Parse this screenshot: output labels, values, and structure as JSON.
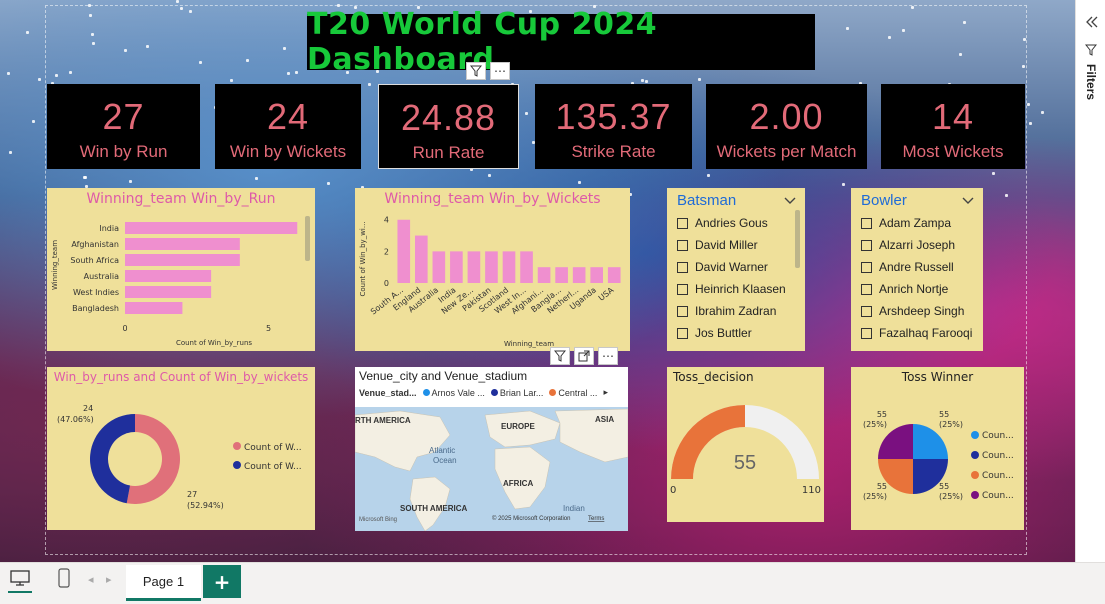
{
  "title": "T20 World Cup 2024 Dashboard",
  "kpis": [
    {
      "value": "27",
      "label": "Win by Run"
    },
    {
      "value": "24",
      "label": "Win by Wickets"
    },
    {
      "value": "24.88",
      "label": "Run Rate"
    },
    {
      "value": "135.37",
      "label": "Strike Rate"
    },
    {
      "value": "2.00",
      "label": "Wickets per Match"
    },
    {
      "value": "14",
      "label": "Most Wickets"
    }
  ],
  "chart_data": [
    {
      "type": "bar",
      "orientation": "horizontal",
      "title": "Winning_team Win_by_Run",
      "categories": [
        "India",
        "Afghanistan",
        "South Africa",
        "Australia",
        "West Indies",
        "Bangladesh"
      ],
      "values": [
        6,
        4,
        4,
        3,
        3,
        2
      ],
      "xlabel": "Count of Win_by_runs",
      "ylabel": "Winning_team",
      "xticks": [
        "0",
        "5"
      ],
      "xlim": [
        0,
        6.2
      ],
      "color": "#ef8fcf"
    },
    {
      "type": "bar",
      "orientation": "vertical",
      "title": "Winning_team Win_by_Wickets",
      "categories": [
        "South A...",
        "England",
        "Australia",
        "India",
        "New Ze...",
        "Pakistan",
        "Scotland",
        "West In...",
        "Afghani...",
        "Bangla...",
        "Netherl...",
        "Uganda",
        "USA"
      ],
      "values": [
        4,
        3,
        2,
        2,
        2,
        2,
        2,
        2,
        1,
        1,
        1,
        1,
        1
      ],
      "xlabel": "Winning_team",
      "ylabel": "Count of Win_by_wi...",
      "yticks": [
        "0",
        "2",
        "4"
      ],
      "ylim": [
        0,
        4.3
      ],
      "color": "#ef8fcf"
    },
    {
      "type": "pie",
      "donut": true,
      "title": "Win_by_runs and Count of Win_by_wickets",
      "series": [
        {
          "name": "Count of W...",
          "value": 27,
          "label": "27",
          "pct": "(52.94%)",
          "color": "#e0707a"
        },
        {
          "name": "Count of W...",
          "value": 24,
          "label": "24",
          "pct": "(47.06%)",
          "color": "#1f2f9c"
        }
      ]
    },
    {
      "type": "gauge",
      "title": "Toss_decision",
      "value": 55,
      "min": 0,
      "max": 110,
      "value_label": "55",
      "min_label": "0",
      "max_label": "110",
      "fill_color": "#e8733a",
      "track_color": "#f0f0f0"
    },
    {
      "type": "pie",
      "title": "Toss Winner",
      "series": [
        {
          "name": "Coun...",
          "value": 55,
          "label": "55",
          "pct": "(25%)",
          "color": "#1e90e8"
        },
        {
          "name": "Coun...",
          "value": 55,
          "label": "55",
          "pct": "(25%)",
          "color": "#1f2f9c"
        },
        {
          "name": "Coun...",
          "value": 55,
          "label": "55",
          "pct": "(25%)",
          "color": "#e8733a"
        },
        {
          "name": "Coun...",
          "value": 55,
          "label": "55",
          "pct": "(25%)",
          "color": "#7a1080"
        }
      ]
    }
  ],
  "batsman_slicer": {
    "title": "Batsman",
    "items": [
      "Andries Gous",
      "David Miller",
      "David Warner",
      "Heinrich Klaasen",
      "Ibrahim Zadran",
      "Jos Buttler"
    ]
  },
  "bowler_slicer": {
    "title": "Bowler",
    "items": [
      "Adam Zampa",
      "Alzarri Joseph",
      "Andre Russell",
      "Anrich Nortje",
      "Arshdeep Singh",
      "Fazalhaq Farooqi"
    ]
  },
  "map": {
    "title": "Venue_city and Venue_stadium",
    "legend_title": "Venue_stad...",
    "legend_items": [
      {
        "name": "Arnos Vale ...",
        "color": "#1e90e8"
      },
      {
        "name": "Brian Lar...",
        "color": "#1f2f9c"
      },
      {
        "name": "Central ...",
        "color": "#e8733a"
      }
    ],
    "labels": {
      "north_america": "RTH AMERICA",
      "europe": "EUROPE",
      "asia": "ASIA",
      "atlantic": "Atlantic",
      "ocean": "Ocean",
      "africa": "AFRICA",
      "south_america": "SOUTH AMERICA",
      "indian": "Indian"
    },
    "bing": "Microsoft Bing",
    "copyright": "© 2025 Microsoft Corporation",
    "terms": "Terms"
  },
  "page_tabs": [
    {
      "label": "Page 1"
    }
  ],
  "filters_label": "Filters",
  "icons": {
    "filter": "filter-icon",
    "more": "more-options-icon",
    "focus": "focus-mode-icon",
    "collapse": "collapse-chevrons-icon",
    "desktop": "desktop-view-icon",
    "mobile": "mobile-view-icon"
  }
}
